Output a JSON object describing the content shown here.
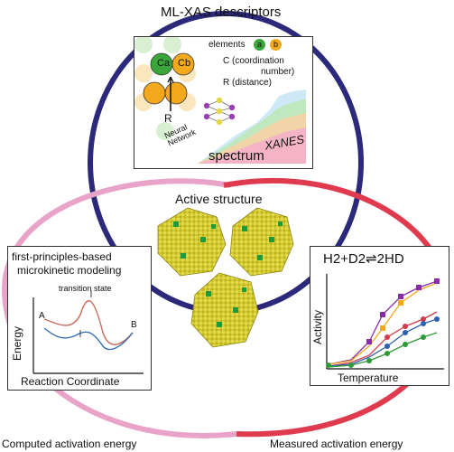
{
  "title": "ML-XAS descriptors",
  "center_title": "Active structure",
  "bottom_left": "Computed activation energy",
  "bottom_right": "Measured activation energy",
  "descriptors": {
    "elements_label": "elements",
    "element_a": "a",
    "element_b": "b",
    "coordination_line1": "C (coordination",
    "coordination_line2": "number)",
    "distance_label": "R (distance)",
    "atom_a": "Ca",
    "atom_b": "Cb",
    "bond_label": "R",
    "neural_network": "Neural Network",
    "spectrum": "spectrum",
    "xanes": "XANES"
  },
  "microkinetic": {
    "title_line1": "first-principles-based",
    "title_line2": "microkinetic modeling",
    "transition_state": "transition state",
    "label_a": "A",
    "label_b": "B",
    "ylabel": "Energy",
    "xlabel": "Reaction Coordinate"
  },
  "activity_panel": {
    "reaction": "H2+D2⇌2HD",
    "ylabel": "Activity",
    "xlabel": "Temperature"
  },
  "colors": {
    "navy_ring": "#2b2a7a",
    "red_ring": "#e03a4e",
    "pink_ring": "#e9a3c9",
    "atom_orange": "#f2a91e",
    "atom_green": "#3aa63a",
    "particle_yellow": "#c9c21a",
    "particle_green": "#1f9a3a"
  }
}
